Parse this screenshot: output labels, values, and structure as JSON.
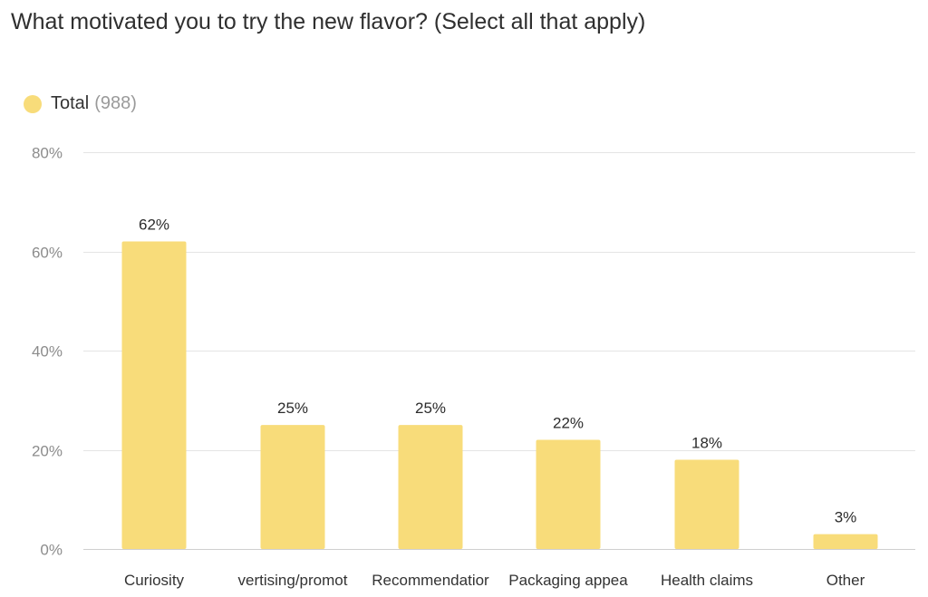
{
  "chart_data": {
    "type": "bar",
    "title": "What motivated you to try the new flavor? (Select all that apply)",
    "categories": [
      "Curiosity",
      "Advertising/promotion",
      "Recommendation",
      "Packaging appeal",
      "Health claims",
      "Other"
    ],
    "category_tick_labels": [
      "Curiosity",
      "vertising/promot",
      "Recommendatior",
      "Packaging appea",
      "Health claims",
      "Other"
    ],
    "series": [
      {
        "name": "Total",
        "count": "(988)",
        "color": "#f8dc7a",
        "values": [
          62,
          25,
          25,
          22,
          18,
          3
        ],
        "data_labels": [
          "62%",
          "25%",
          "25%",
          "22%",
          "18%",
          "3%"
        ]
      }
    ],
    "ylim": [
      0,
      80
    ],
    "yticks": [
      0,
      20,
      40,
      60,
      80
    ],
    "ytick_labels": [
      "0%",
      "20%",
      "40%",
      "60%",
      "80%"
    ],
    "xlabel": "",
    "ylabel": "",
    "grid": true,
    "legend_position": "top-left"
  }
}
